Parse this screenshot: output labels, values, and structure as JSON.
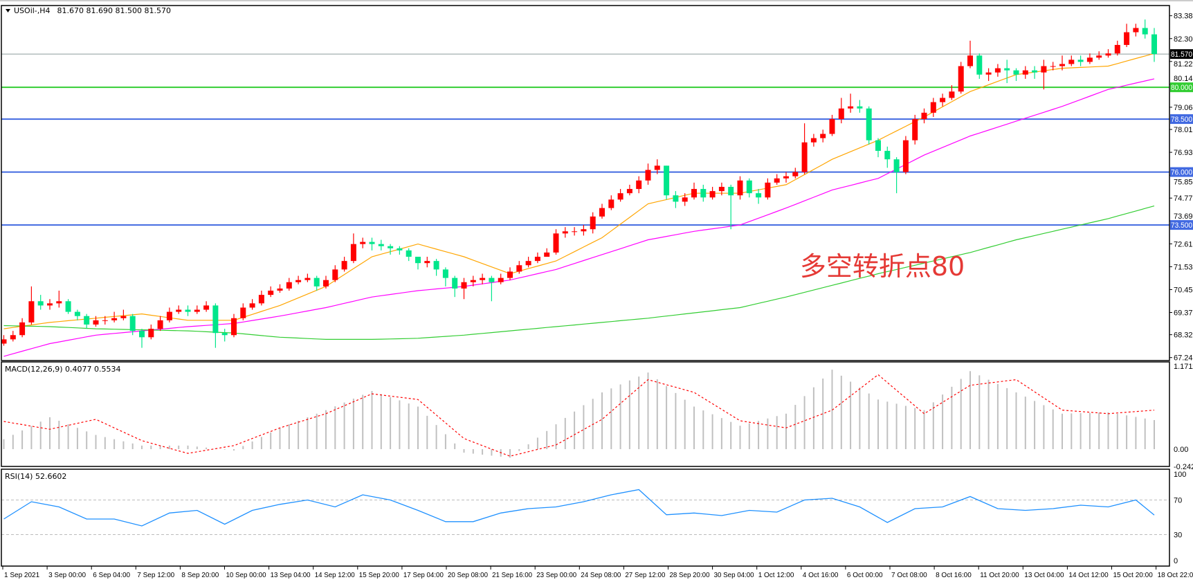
{
  "header": {
    "symbol_label": "USOil-,H4",
    "ohlc_text": "81.670 81.690 81.500 81.570"
  },
  "annotation": {
    "text": "多空转折点80",
    "color": "#E53935"
  },
  "colors": {
    "bull": "#FF0000",
    "bear": "#00E68A",
    "ma_fast": "#FFA500",
    "ma_mid": "#FF00FF",
    "ma_slow": "#32CD32",
    "level_80": "#32CD32",
    "level_blue": "#4169E1",
    "macd_hist": "#C0C0C0",
    "macd_signal": "#FF0000",
    "rsi": "#1E90FF"
  },
  "chart_data": [
    {
      "type": "candlestick",
      "title": "USOil-,H4",
      "price_axis_labels": [
        "83.380",
        "82.300",
        "81.220",
        "80.140",
        "79.060",
        "78.010",
        "76.930",
        "75.850",
        "74.770",
        "73.690",
        "72.610",
        "71.530",
        "70.450",
        "69.370",
        "68.320",
        "67.240"
      ],
      "ylim": [
        67.24,
        83.38
      ],
      "time_axis_labels": [
        "1 Sep 2021",
        "3 Sep 00:00",
        "6 Sep 04:00",
        "7 Sep 12:00",
        "8 Sep 20:00",
        "10 Sep 00:00",
        "13 Sep 04:00",
        "14 Sep 12:00",
        "15 Sep 20:00",
        "17 Sep 04:00",
        "20 Sep 08:00",
        "21 Sep 16:00",
        "23 Sep 00:00",
        "24 Sep 08:00",
        "27 Sep 12:00",
        "28 Sep 20:00",
        "30 Sep 04:00",
        "1 Oct 12:00",
        "4 Oct 16:00",
        "6 Oct 00:00",
        "7 Oct 08:00",
        "8 Oct 16:00",
        "11 Oct 20:00",
        "13 Oct 04:00",
        "14 Oct 12:00",
        "15 Oct 20:00",
        "18 Oct 22:00"
      ],
      "first_open": 67.9,
      "close": [
        68.1,
        68.3,
        68.9,
        69.9,
        69.7,
        69.8,
        69.9,
        69.4,
        69.2,
        68.8,
        69.0,
        69.0,
        69.1,
        69.2,
        68.5,
        68.2,
        68.6,
        69.0,
        69.4,
        69.5,
        69.4,
        69.5,
        69.7,
        68.4,
        68.3,
        69.1,
        69.6,
        69.8,
        70.2,
        70.4,
        70.5,
        70.8,
        70.9,
        71.0,
        70.6,
        70.9,
        71.4,
        71.8,
        72.6,
        72.7,
        72.6,
        72.5,
        72.4,
        72.3,
        72.0,
        71.7,
        71.8,
        71.4,
        71.0,
        70.5,
        70.8,
        70.9,
        71.0,
        70.8,
        71.0,
        71.3,
        71.6,
        71.8,
        72.0,
        72.2,
        73.1,
        73.2,
        73.2,
        73.3,
        73.9,
        74.3,
        74.7,
        75.0,
        75.2,
        75.6,
        76.1,
        76.3,
        74.9,
        74.6,
        74.8,
        75.2,
        74.8,
        75.1,
        75.3,
        74.9,
        75.6,
        75.0,
        74.8,
        75.5,
        75.7,
        75.8,
        76.0,
        77.4,
        77.6,
        77.8,
        78.5,
        79.0,
        79.1,
        79.0,
        77.5,
        77.0,
        76.6,
        76.0,
        77.5,
        78.5,
        78.8,
        79.3,
        79.5,
        79.8,
        81.0,
        81.5,
        80.6,
        80.7,
        80.9,
        80.8,
        80.6,
        80.8,
        80.7,
        81.0,
        81.0,
        81.1,
        81.3,
        81.2,
        81.4,
        81.5,
        81.6,
        82.0,
        82.6,
        82.8,
        82.5,
        81.57
      ],
      "high": [
        68.3,
        68.5,
        69.1,
        70.6,
        70.2,
        70.0,
        70.4,
        70.0,
        69.5,
        69.3,
        69.2,
        69.2,
        69.4,
        69.5,
        69.3,
        68.6,
        68.8,
        69.2,
        69.6,
        69.7,
        69.7,
        69.7,
        69.9,
        69.8,
        68.6,
        69.3,
        69.8,
        70.0,
        70.4,
        70.6,
        70.7,
        71.0,
        71.1,
        71.2,
        71.1,
        71.1,
        71.6,
        72.0,
        73.1,
        72.9,
        72.9,
        72.8,
        72.6,
        72.5,
        72.4,
        72.0,
        72.0,
        71.9,
        71.5,
        71.1,
        71.0,
        71.1,
        71.2,
        71.1,
        71.2,
        71.5,
        71.8,
        72.0,
        72.2,
        72.4,
        73.3,
        73.4,
        73.4,
        73.5,
        74.1,
        74.5,
        74.9,
        75.2,
        75.4,
        75.8,
        76.4,
        76.6,
        76.3,
        75.1,
        75.0,
        75.5,
        75.4,
        75.3,
        75.5,
        75.4,
        75.8,
        75.7,
        75.2,
        75.7,
        75.9,
        76.0,
        76.2,
        78.3,
        77.8,
        78.0,
        78.7,
        79.5,
        79.7,
        79.4,
        79.1,
        77.6,
        77.2,
        76.7,
        77.7,
        78.7,
        79.0,
        79.5,
        79.7,
        80.1,
        81.2,
        82.2,
        81.6,
        80.9,
        81.1,
        81.3,
        80.9,
        81.0,
        81.0,
        81.3,
        81.2,
        81.5,
        81.5,
        81.5,
        81.6,
        81.7,
        81.8,
        82.2,
        83.0,
        83.0,
        83.2,
        82.8
      ],
      "low": [
        67.8,
        68.0,
        68.2,
        68.8,
        69.5,
        69.5,
        69.6,
        69.3,
        69.0,
        68.6,
        68.7,
        68.8,
        68.9,
        69.0,
        68.3,
        67.7,
        68.1,
        68.5,
        68.9,
        69.3,
        69.2,
        69.3,
        69.4,
        67.7,
        68.0,
        68.2,
        69.0,
        69.5,
        69.7,
        70.1,
        70.3,
        70.4,
        70.7,
        70.8,
        70.4,
        70.5,
        70.8,
        71.3,
        71.7,
        72.4,
        72.3,
        72.3,
        72.1,
        72.1,
        71.8,
        71.4,
        71.5,
        71.1,
        70.6,
        70.1,
        70.0,
        70.6,
        70.7,
        69.9,
        70.7,
        70.9,
        71.2,
        71.5,
        71.7,
        72.0,
        72.1,
        72.9,
        73.0,
        73.0,
        73.1,
        73.8,
        74.2,
        74.6,
        74.9,
        75.0,
        75.4,
        75.9,
        74.7,
        74.3,
        74.4,
        74.7,
        74.6,
        74.7,
        74.9,
        73.3,
        74.7,
        74.8,
        74.5,
        74.7,
        75.4,
        75.5,
        75.7,
        75.9,
        77.2,
        77.4,
        77.7,
        78.3,
        78.8,
        78.8,
        77.3,
        76.7,
        76.2,
        75.0,
        75.9,
        77.3,
        78.3,
        78.6,
        79.1,
        79.4,
        79.7,
        80.9,
        80.4,
        80.3,
        80.5,
        80.2,
        80.3,
        80.4,
        80.4,
        79.9,
        80.8,
        80.8,
        81.0,
        81.0,
        81.1,
        81.3,
        81.4,
        81.5,
        81.9,
        82.4,
        82.3,
        81.2
      ],
      "moving_averages_sampled_every_5_candles": {
        "fast": [
          68.6,
          68.9,
          69.1,
          69.3,
          69.0,
          69.0,
          69.7,
          70.6,
          72.0,
          72.6,
          72.0,
          71.2,
          71.8,
          72.9,
          74.5,
          75.0,
          75.0,
          75.4,
          76.6,
          77.5,
          78.6,
          79.8,
          80.6,
          80.9,
          81.0,
          81.6
        ],
        "mid": [
          67.3,
          67.9,
          68.3,
          68.5,
          68.7,
          68.85,
          69.2,
          69.6,
          70.1,
          70.4,
          70.6,
          70.9,
          71.4,
          72.1,
          72.8,
          73.2,
          73.5,
          74.3,
          75.15,
          75.7,
          76.8,
          77.7,
          78.4,
          79.1,
          79.9,
          80.4
        ],
        "slow": [
          68.75,
          68.7,
          68.6,
          68.55,
          68.5,
          68.4,
          68.2,
          68.1,
          68.1,
          68.15,
          68.3,
          68.5,
          68.7,
          68.9,
          69.1,
          69.35,
          69.6,
          70.1,
          70.65,
          71.2,
          71.7,
          72.2,
          72.8,
          73.3,
          73.8,
          74.4
        ]
      },
      "horizontal_levels": [
        {
          "value": 80.0,
          "label": "80.000",
          "color": "#32CD32"
        },
        {
          "value": 78.5,
          "label": "78.500",
          "color": "#4169E1"
        },
        {
          "value": 76.0,
          "label": "76.000",
          "color": "#4169E1"
        },
        {
          "value": 73.5,
          "label": "73.500",
          "color": "#4169E1"
        }
      ],
      "bid_line": {
        "value": 81.57,
        "label": "81.570"
      }
    },
    {
      "type": "bar",
      "title": "MACD(12,26,9) 0.4077 0.5534",
      "axis_labels": [
        "1.1711",
        "0.00",
        "-0.2424"
      ],
      "ylim": [
        -0.2424,
        1.1711
      ],
      "histogram_sampled_every_5_candles": [
        0.14,
        0.45,
        0.2,
        0.05,
        0.05,
        -0.02,
        0.3,
        0.55,
        0.82,
        0.6,
        -0.05,
        -0.12,
        0.35,
        0.8,
        1.08,
        0.6,
        0.33,
        0.5,
        1.12,
        0.7,
        0.55,
        1.1,
        0.8,
        0.5,
        0.52,
        0.41
      ],
      "signal_sampled_every_5_candles": [
        0.39,
        0.28,
        0.42,
        0.12,
        -0.06,
        0.05,
        0.3,
        0.5,
        0.78,
        0.7,
        0.15,
        -0.1,
        0.06,
        0.42,
        0.98,
        0.8,
        0.4,
        0.3,
        0.55,
        1.05,
        0.5,
        0.9,
        0.98,
        0.55,
        0.5,
        0.55
      ]
    },
    {
      "type": "line",
      "title": "RSI(14) 52.6602",
      "axis_labels": [
        "100",
        "70",
        "30",
        "0"
      ],
      "ylim": [
        0,
        100
      ],
      "levels": [
        70,
        30
      ],
      "values_sampled_every_3_candles": [
        48,
        68,
        62,
        48,
        48,
        40,
        55,
        58,
        42,
        58,
        65,
        70,
        62,
        76,
        70,
        58,
        45,
        45,
        55,
        60,
        62,
        68,
        76,
        82,
        53,
        55,
        52,
        58,
        56,
        70,
        72,
        62,
        44,
        60,
        62,
        74,
        60,
        58,
        60,
        64,
        62,
        70,
        52.66
      ]
    }
  ]
}
